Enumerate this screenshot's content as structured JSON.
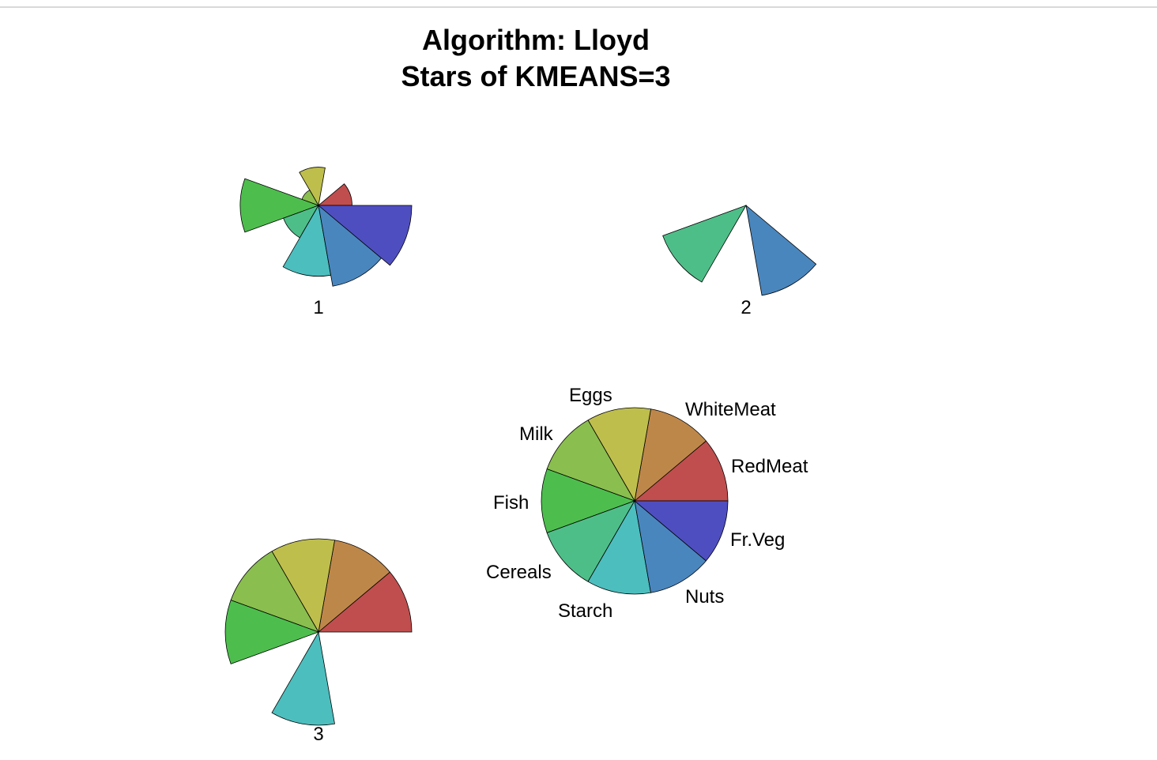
{
  "chart_data": {
    "type": "star_segments",
    "title_line1": "Algorithm: Lloyd",
    "title_line2": "Stars of KMEANS=3",
    "variables": [
      "RedMeat",
      "WhiteMeat",
      "Eggs",
      "Milk",
      "Fish",
      "Cereals",
      "Starch",
      "Nuts",
      "Fr.Veg"
    ],
    "colors": [
      "#c04e4e",
      "#be874a",
      "#bebe4d",
      "#8abe4e",
      "#4dbe4d",
      "#4ebe88",
      "#4cbebe",
      "#4a86be",
      "#4f4ec0"
    ],
    "stars": [
      {
        "label": "1",
        "values": [
          0.36,
          0.0,
          0.41,
          0.19,
          0.84,
          0.4,
          0.76,
          0.88,
          1.0
        ]
      },
      {
        "label": "2",
        "values": [
          0.0,
          0.0,
          0.0,
          0.0,
          0.0,
          0.95,
          0.0,
          0.98,
          0.0
        ]
      },
      {
        "label": "3",
        "values": [
          1.0,
          1.0,
          1.0,
          1.0,
          1.0,
          0.0,
          1.0,
          0.0,
          0.0
        ]
      }
    ],
    "key_values": [
      1,
      1,
      1,
      1,
      1,
      1,
      1,
      1,
      1
    ]
  }
}
